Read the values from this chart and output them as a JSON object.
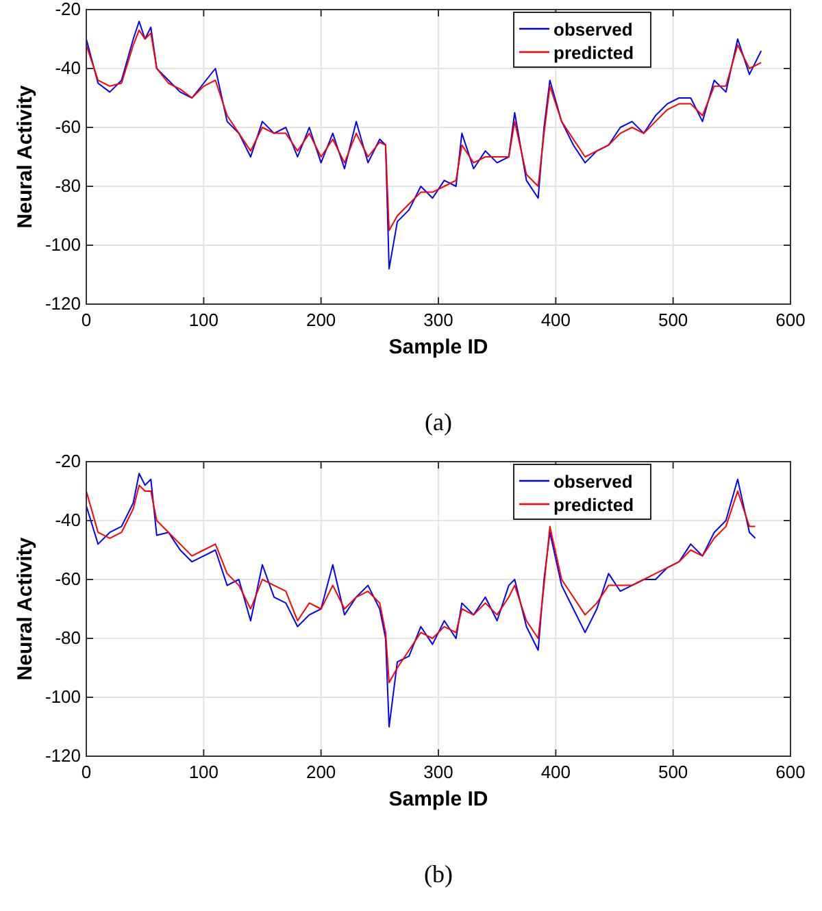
{
  "chart_data": [
    {
      "type": "line",
      "xlabel": "Sample ID",
      "ylabel": "Neural Activity",
      "annotations": [
        "(a)"
      ],
      "xlim": [
        0,
        600
      ],
      "xticks": [
        0,
        100,
        200,
        300,
        400,
        500,
        600
      ],
      "ylim": [
        -120,
        -20
      ],
      "yticks": [
        -120,
        -100,
        -80,
        -60,
        -40,
        -20
      ],
      "grid": true,
      "legend": "top right",
      "x": [
        0,
        10,
        20,
        30,
        40,
        45,
        50,
        55,
        60,
        70,
        80,
        90,
        100,
        110,
        120,
        130,
        140,
        150,
        160,
        170,
        180,
        190,
        200,
        210,
        220,
        230,
        240,
        250,
        255,
        258,
        265,
        275,
        285,
        295,
        305,
        315,
        320,
        330,
        340,
        350,
        360,
        365,
        375,
        385,
        390,
        395,
        405,
        415,
        425,
        435,
        445,
        455,
        465,
        475,
        485,
        495,
        505,
        515,
        525,
        535,
        545,
        555,
        565,
        575
      ],
      "series": [
        {
          "name": "observed",
          "color": "#0000ff",
          "values": [
            -30,
            -45,
            -48,
            -44,
            -30,
            -24,
            -30,
            -26,
            -40,
            -44,
            -48,
            -50,
            -45,
            -40,
            -58,
            -62,
            -70,
            -58,
            -62,
            -60,
            -70,
            -60,
            -72,
            -62,
            -74,
            -58,
            -72,
            -64,
            -66,
            -108,
            -92,
            -88,
            -80,
            -84,
            -78,
            -80,
            -62,
            -74,
            -68,
            -72,
            -70,
            -55,
            -78,
            -84,
            -60,
            -44,
            -58,
            -66,
            -72,
            -68,
            -66,
            -60,
            -58,
            -62,
            -56,
            -52,
            -50,
            -50,
            -58,
            -44,
            -48,
            -30,
            -42,
            -34
          ]
        },
        {
          "name": "predicted",
          "color": "#ff0000",
          "values": [
            -32,
            -44,
            -46,
            -45,
            -32,
            -27,
            -30,
            -28,
            -40,
            -45,
            -47,
            -50,
            -46,
            -44,
            -56,
            -62,
            -68,
            -60,
            -62,
            -62,
            -68,
            -62,
            -70,
            -64,
            -72,
            -62,
            -70,
            -65,
            -66,
            -95,
            -90,
            -86,
            -82,
            -82,
            -80,
            -78,
            -66,
            -72,
            -70,
            -70,
            -70,
            -58,
            -76,
            -80,
            -62,
            -46,
            -58,
            -64,
            -70,
            -68,
            -66,
            -62,
            -60,
            -62,
            -58,
            -54,
            -52,
            -52,
            -56,
            -46,
            -46,
            -32,
            -40,
            -38
          ]
        }
      ]
    },
    {
      "type": "line",
      "xlabel": "Sample ID",
      "ylabel": "Neural Activity",
      "annotations": [
        "(b)"
      ],
      "xlim": [
        0,
        600
      ],
      "xticks": [
        0,
        100,
        200,
        300,
        400,
        500,
        600
      ],
      "ylim": [
        -120,
        -20
      ],
      "yticks": [
        -120,
        -100,
        -80,
        -60,
        -40,
        -20
      ],
      "grid": true,
      "legend": "top right",
      "x": [
        0,
        10,
        20,
        30,
        40,
        45,
        50,
        55,
        60,
        70,
        80,
        90,
        100,
        110,
        120,
        130,
        140,
        150,
        160,
        170,
        180,
        190,
        200,
        210,
        220,
        230,
        240,
        250,
        255,
        258,
        265,
        275,
        285,
        295,
        305,
        315,
        320,
        330,
        340,
        350,
        360,
        365,
        375,
        385,
        390,
        395,
        405,
        415,
        425,
        435,
        445,
        455,
        465,
        475,
        485,
        495,
        505,
        515,
        525,
        535,
        545,
        555,
        565,
        570
      ],
      "series": [
        {
          "name": "observed",
          "color": "#0000ff",
          "values": [
            -35,
            -48,
            -44,
            -42,
            -34,
            -24,
            -28,
            -26,
            -45,
            -44,
            -50,
            -54,
            -52,
            -50,
            -62,
            -60,
            -74,
            -55,
            -66,
            -68,
            -76,
            -72,
            -70,
            -55,
            -72,
            -66,
            -62,
            -70,
            -80,
            -110,
            -88,
            -86,
            -76,
            -82,
            -74,
            -80,
            -68,
            -72,
            -66,
            -74,
            -62,
            -60,
            -76,
            -84,
            -60,
            -44,
            -62,
            -70,
            -78,
            -70,
            -58,
            -64,
            -62,
            -60,
            -60,
            -56,
            -54,
            -48,
            -52,
            -44,
            -40,
            -26,
            -44,
            -46
          ]
        },
        {
          "name": "predicted",
          "color": "#ff0000",
          "values": [
            -30,
            -44,
            -46,
            -44,
            -36,
            -28,
            -30,
            -30,
            -40,
            -44,
            -48,
            -52,
            -50,
            -48,
            -58,
            -62,
            -70,
            -60,
            -62,
            -64,
            -74,
            -68,
            -70,
            -62,
            -70,
            -66,
            -64,
            -68,
            -78,
            -95,
            -90,
            -84,
            -78,
            -80,
            -76,
            -78,
            -70,
            -72,
            -68,
            -72,
            -66,
            -62,
            -74,
            -80,
            -62,
            -42,
            -60,
            -66,
            -72,
            -68,
            -62,
            -62,
            -62,
            -60,
            -58,
            -56,
            -54,
            -50,
            -52,
            -46,
            -42,
            -30,
            -42,
            -42
          ]
        }
      ]
    }
  ]
}
